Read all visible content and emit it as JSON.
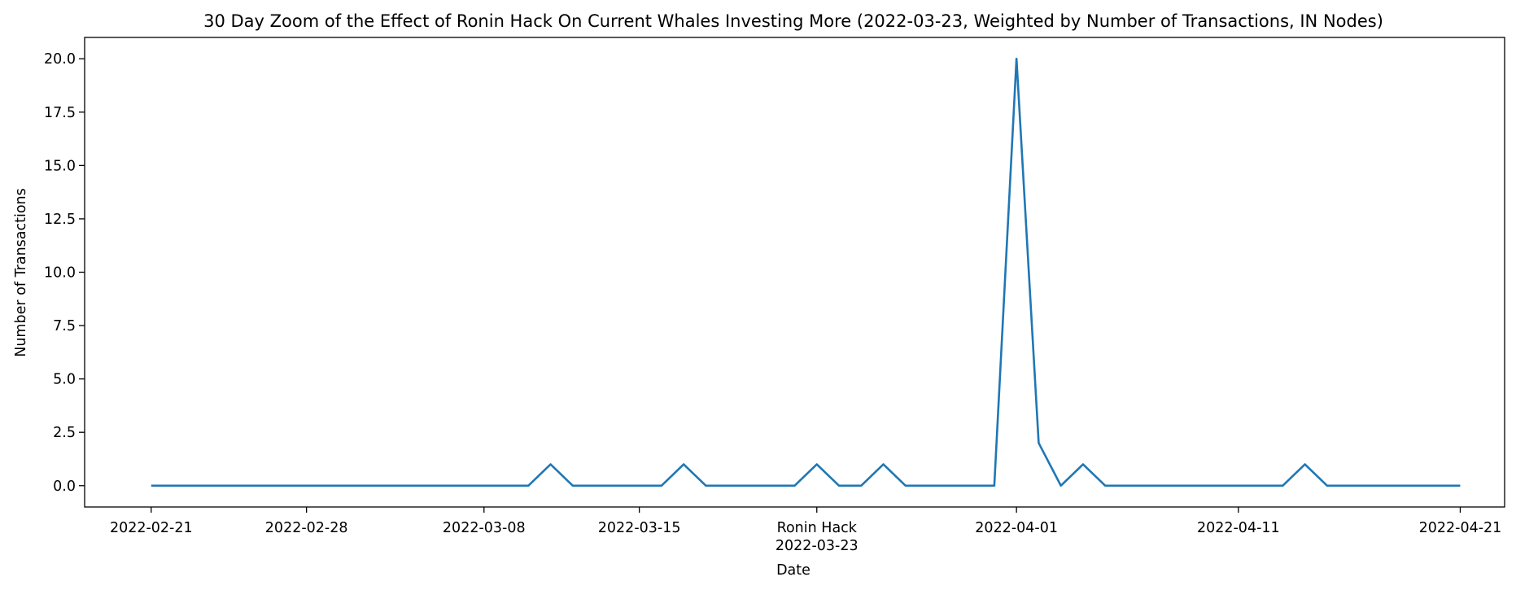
{
  "chart_data": {
    "type": "line",
    "title": "30 Day Zoom of the Effect of Ronin Hack On Current Whales Investing More (2022-03-23, Weighted by Number of Transactions, IN Nodes)",
    "xlabel": "Date",
    "ylabel": "Number of Transactions",
    "xlim": [
      "2022-02-18",
      "2022-04-23"
    ],
    "ylim": [
      -1.0,
      21.0
    ],
    "grid": false,
    "colors": {
      "line": "#1f77b4",
      "axes": "#000000"
    },
    "x_ticks": [
      {
        "date": "2022-02-21",
        "label": "2022-02-21"
      },
      {
        "date": "2022-02-28",
        "label": "2022-02-28"
      },
      {
        "date": "2022-03-08",
        "label": "2022-03-08"
      },
      {
        "date": "2022-03-15",
        "label": "2022-03-15"
      },
      {
        "date": "2022-03-23",
        "label": "Ronin Hack",
        "label2": "2022-03-23"
      },
      {
        "date": "2022-04-01",
        "label": "2022-04-01"
      },
      {
        "date": "2022-04-11",
        "label": "2022-04-11"
      },
      {
        "date": "2022-04-21",
        "label": "2022-04-21"
      }
    ],
    "y_ticks": [
      {
        "value": 0.0,
        "label": "0.0"
      },
      {
        "value": 2.5,
        "label": "2.5"
      },
      {
        "value": 5.0,
        "label": "5.0"
      },
      {
        "value": 7.5,
        "label": "7.5"
      },
      {
        "value": 10.0,
        "label": "10.0"
      },
      {
        "value": 12.5,
        "label": "12.5"
      },
      {
        "value": 15.0,
        "label": "15.0"
      },
      {
        "value": 17.5,
        "label": "17.5"
      },
      {
        "value": 20.0,
        "label": "20.0"
      }
    ],
    "series": [
      {
        "x": [
          "2022-02-21",
          "2022-03-10",
          "2022-03-11",
          "2022-03-12",
          "2022-03-16",
          "2022-03-17",
          "2022-03-18",
          "2022-03-22",
          "2022-03-23",
          "2022-03-24",
          "2022-03-25",
          "2022-03-26",
          "2022-03-27",
          "2022-03-31",
          "2022-04-01",
          "2022-04-02",
          "2022-04-03",
          "2022-04-04",
          "2022-04-05",
          "2022-04-13",
          "2022-04-14",
          "2022-04-15",
          "2022-04-21"
        ],
        "values": [
          0,
          0,
          1,
          0,
          0,
          1,
          0,
          0,
          1,
          0,
          0,
          1,
          0,
          0,
          20,
          2,
          0,
          1,
          0,
          0,
          1,
          0,
          0
        ]
      }
    ]
  }
}
